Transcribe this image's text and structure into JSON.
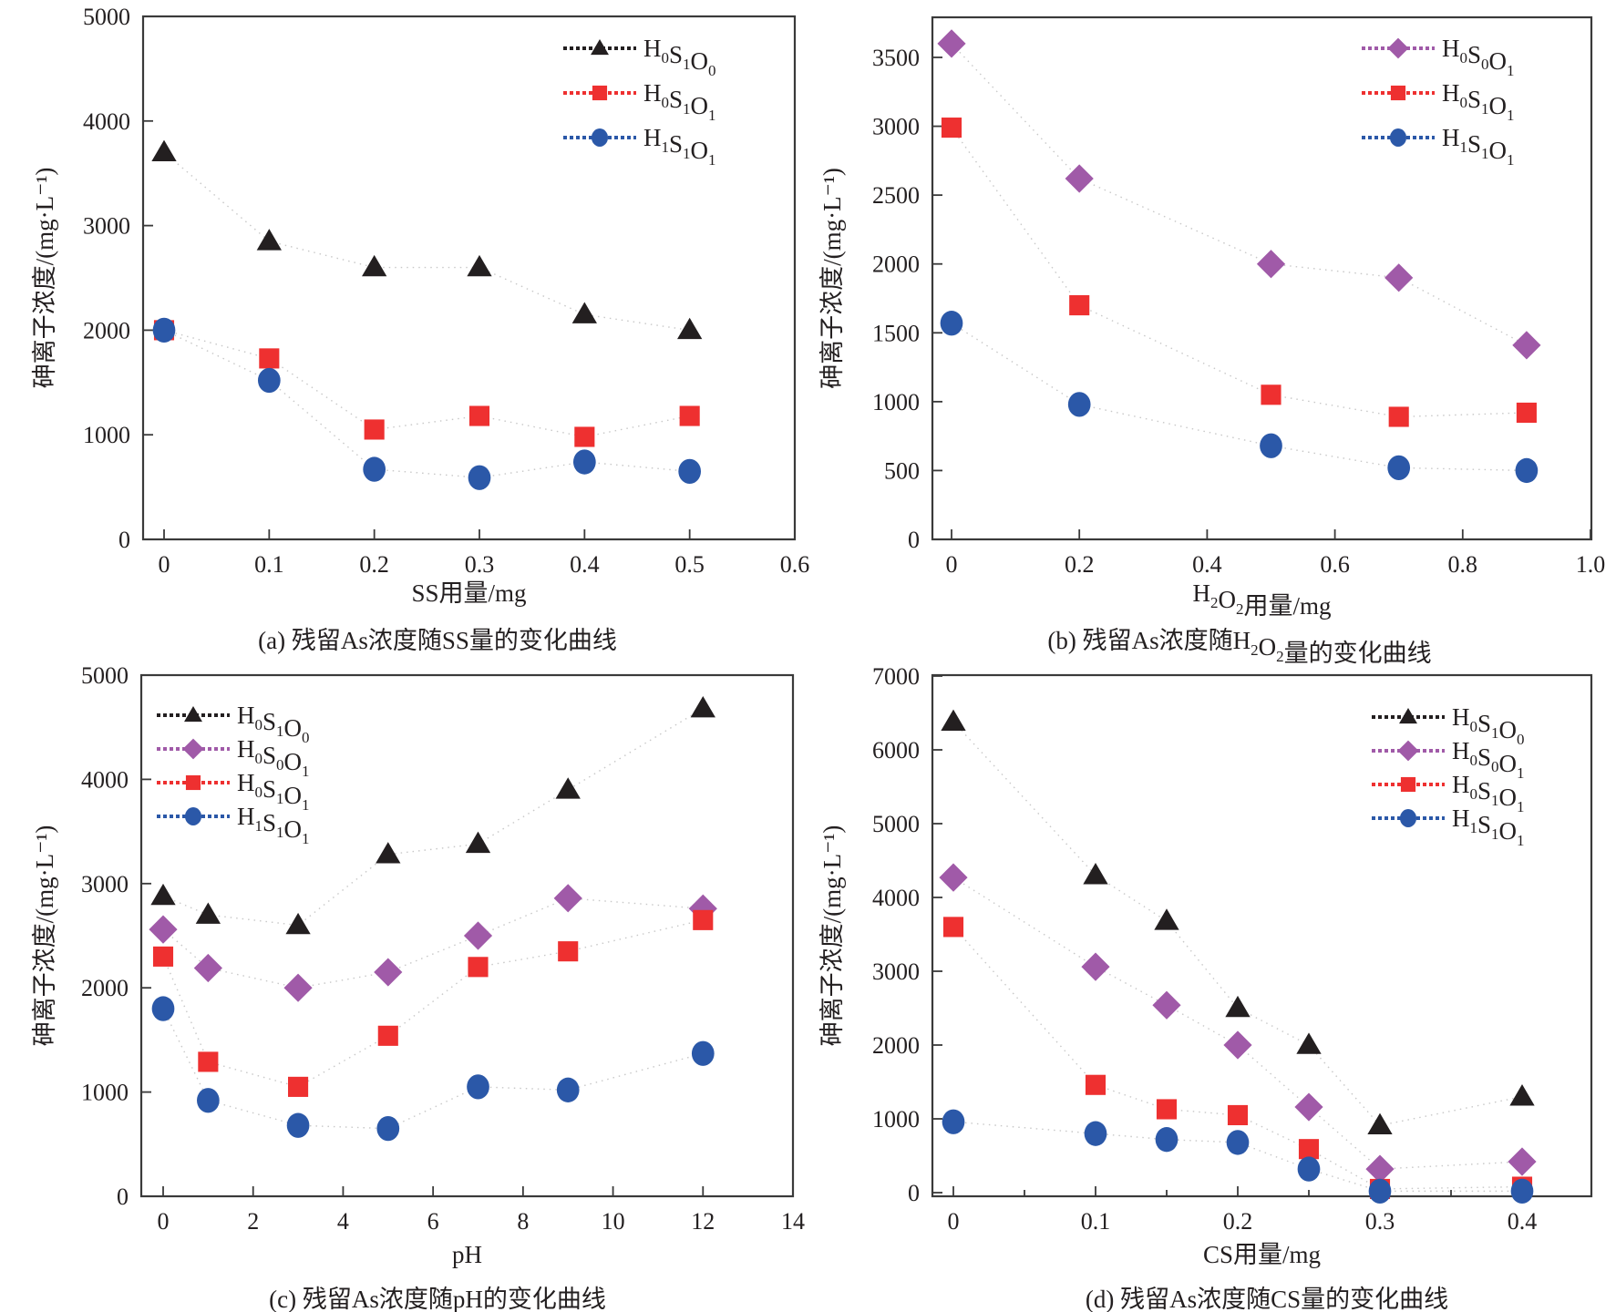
{
  "colors": {
    "H0S1O0": "#231f20",
    "H0S0O1": "#a05aa8",
    "H0S1O1": "#ee3030",
    "H1S1O1": "#2b58a8",
    "axis": "#3a3a3a",
    "connector": "#c8c8c8"
  },
  "series_meta": {
    "H0S1O0": {
      "label": "H0S1O0",
      "parts": [
        [
          "H",
          "0"
        ],
        [
          "S",
          "1"
        ],
        [
          "O",
          "0"
        ]
      ],
      "marker": "triangle"
    },
    "H0S0O1": {
      "label": "H0S0O1",
      "parts": [
        [
          "H",
          "0"
        ],
        [
          "S",
          "0"
        ],
        [
          "O",
          "1"
        ]
      ],
      "marker": "diamond"
    },
    "H0S1O1": {
      "label": "H0S1O1",
      "parts": [
        [
          "H",
          "0"
        ],
        [
          "S",
          "1"
        ],
        [
          "O",
          "1"
        ]
      ],
      "marker": "square"
    },
    "H1S1O1": {
      "label": "H1S1O1",
      "parts": [
        [
          "H",
          "1"
        ],
        [
          "S",
          "1"
        ],
        [
          "O",
          "1"
        ]
      ],
      "marker": "circle"
    }
  },
  "chart_data": [
    {
      "id": "a",
      "type": "scatter",
      "title": "(a) 残留As浓度随SS量的变化曲线",
      "xlabel": "SS用量/mg",
      "ylabel": "砷离子浓度/(mg·L⁻¹)",
      "xlim": [
        -0.02,
        0.6
      ],
      "ylim": [
        0,
        5000
      ],
      "xticks": [
        0,
        0.1,
        0.2,
        0.3,
        0.4,
        0.5,
        0.6
      ],
      "xtick_labels": [
        "0",
        "0.1",
        "0.2",
        "0.3",
        "0.4",
        "0.5",
        "0.6"
      ],
      "yticks": [
        0,
        1000,
        2000,
        3000,
        4000,
        5000
      ],
      "ytick_labels": [
        "0",
        "1000",
        "2000",
        "3000",
        "4000",
        "5000"
      ],
      "legend_position": "top-right",
      "grid": false,
      "x": [
        0,
        0.1,
        0.2,
        0.3,
        0.4,
        0.5
      ],
      "series": [
        {
          "name": "H0S1O0",
          "values": [
            3700,
            2850,
            2600,
            2600,
            2150,
            2000
          ]
        },
        {
          "name": "H0S1O1",
          "values": [
            2000,
            1730,
            1050,
            1180,
            980,
            1180
          ]
        },
        {
          "name": "H1S1O1",
          "values": [
            2000,
            1520,
            670,
            590,
            740,
            650
          ]
        }
      ]
    },
    {
      "id": "b",
      "type": "scatter",
      "title": "(b) 残留As浓度随H₂O₂量的变化曲线",
      "xlabel": "H₂O₂用量/mg",
      "ylabel": "砷离子浓度/(mg·L⁻¹)",
      "xlim": [
        -0.03,
        1.0
      ],
      "ylim": [
        0,
        3790
      ],
      "xticks": [
        0,
        0.2,
        0.4,
        0.6,
        0.8,
        1.0
      ],
      "xtick_labels": [
        "0",
        "0.2",
        "0.4",
        "0.6",
        "0.8",
        "1.0"
      ],
      "yticks": [
        0,
        500,
        1000,
        1500,
        2000,
        2500,
        3000,
        3500
      ],
      "ytick_labels": [
        "0",
        "500",
        "1000",
        "1500",
        "2000",
        "2500",
        "3000",
        "3500"
      ],
      "legend_position": "top-right",
      "grid": false,
      "x": [
        0,
        0.2,
        0.5,
        0.7,
        0.9
      ],
      "series": [
        {
          "name": "H0S0O1",
          "values": [
            3600,
            2620,
            2000,
            1900,
            1410
          ]
        },
        {
          "name": "H0S1O1",
          "values": [
            2990,
            1700,
            1050,
            890,
            920
          ]
        },
        {
          "name": "H1S1O1",
          "values": [
            1570,
            980,
            680,
            520,
            500
          ]
        }
      ]
    },
    {
      "id": "c",
      "type": "scatter",
      "title": "(c) 残留As浓度随pH的变化曲线",
      "xlabel": "pH",
      "ylabel": "砷离子浓度/(mg·L⁻¹)",
      "xlim": [
        -0.5,
        14
      ],
      "ylim": [
        0,
        5000
      ],
      "xticks": [
        0,
        2,
        4,
        6,
        8,
        10,
        12,
        14
      ],
      "xtick_labels": [
        "0",
        "2",
        "4",
        "6",
        "8",
        "10",
        "12",
        "14"
      ],
      "yticks": [
        0,
        1000,
        2000,
        3000,
        4000,
        5000
      ],
      "ytick_labels": [
        "0",
        "1000",
        "2000",
        "3000",
        "4000",
        "5000"
      ],
      "legend_position": "top-left",
      "grid": false,
      "x": [
        0,
        1,
        3,
        5,
        7,
        9,
        12
      ],
      "series": [
        {
          "name": "H0S1O0",
          "values": [
            2880,
            2700,
            2600,
            3280,
            3380,
            3900,
            4680
          ]
        },
        {
          "name": "H0S0O1",
          "values": [
            2560,
            2190,
            2000,
            2150,
            2500,
            2860,
            2760
          ]
        },
        {
          "name": "H0S1O1",
          "values": [
            2300,
            1290,
            1050,
            1540,
            2200,
            2350,
            2650
          ]
        },
        {
          "name": "H1S1O1",
          "values": [
            1800,
            920,
            680,
            650,
            1050,
            1020,
            1370
          ]
        }
      ]
    },
    {
      "id": "d",
      "type": "scatter",
      "title": "(d) 残留As浓度随CS量的变化曲线",
      "xlabel": "CS用量/mg",
      "ylabel": "砷离子浓度/(mg·L⁻¹)",
      "xlim": [
        -0.014,
        0.45
      ],
      "ylim": [
        -50,
        7000
      ],
      "xticks": [
        0,
        0.05,
        0.1,
        0.15,
        0.2,
        0.25,
        0.3,
        0.35,
        0.4
      ],
      "xtick_labels": [
        "0",
        "",
        "0.1",
        "",
        "0.2",
        "",
        "0.3",
        "",
        "0.4"
      ],
      "yticks": [
        0,
        1000,
        2000,
        3000,
        4000,
        5000,
        6000,
        7000
      ],
      "ytick_labels": [
        "0",
        "1000",
        "2000",
        "3000",
        "4000",
        "5000",
        "6000",
        "7000"
      ],
      "legend_position": "top-right",
      "grid": false,
      "x": [
        0,
        0.1,
        0.15,
        0.2,
        0.25,
        0.3,
        0.4
      ],
      "series": [
        {
          "name": "H0S1O0",
          "values": [
            6380,
            4300,
            3680,
            2500,
            2000,
            910,
            1300
          ]
        },
        {
          "name": "H0S0O1",
          "values": [
            4270,
            3060,
            2540,
            2000,
            1160,
            320,
            420
          ]
        },
        {
          "name": "H0S1O1",
          "values": [
            3600,
            1460,
            1130,
            1050,
            590,
            50,
            80
          ]
        },
        {
          "name": "H1S1O1",
          "values": [
            960,
            800,
            720,
            680,
            320,
            20,
            20
          ]
        }
      ]
    }
  ]
}
